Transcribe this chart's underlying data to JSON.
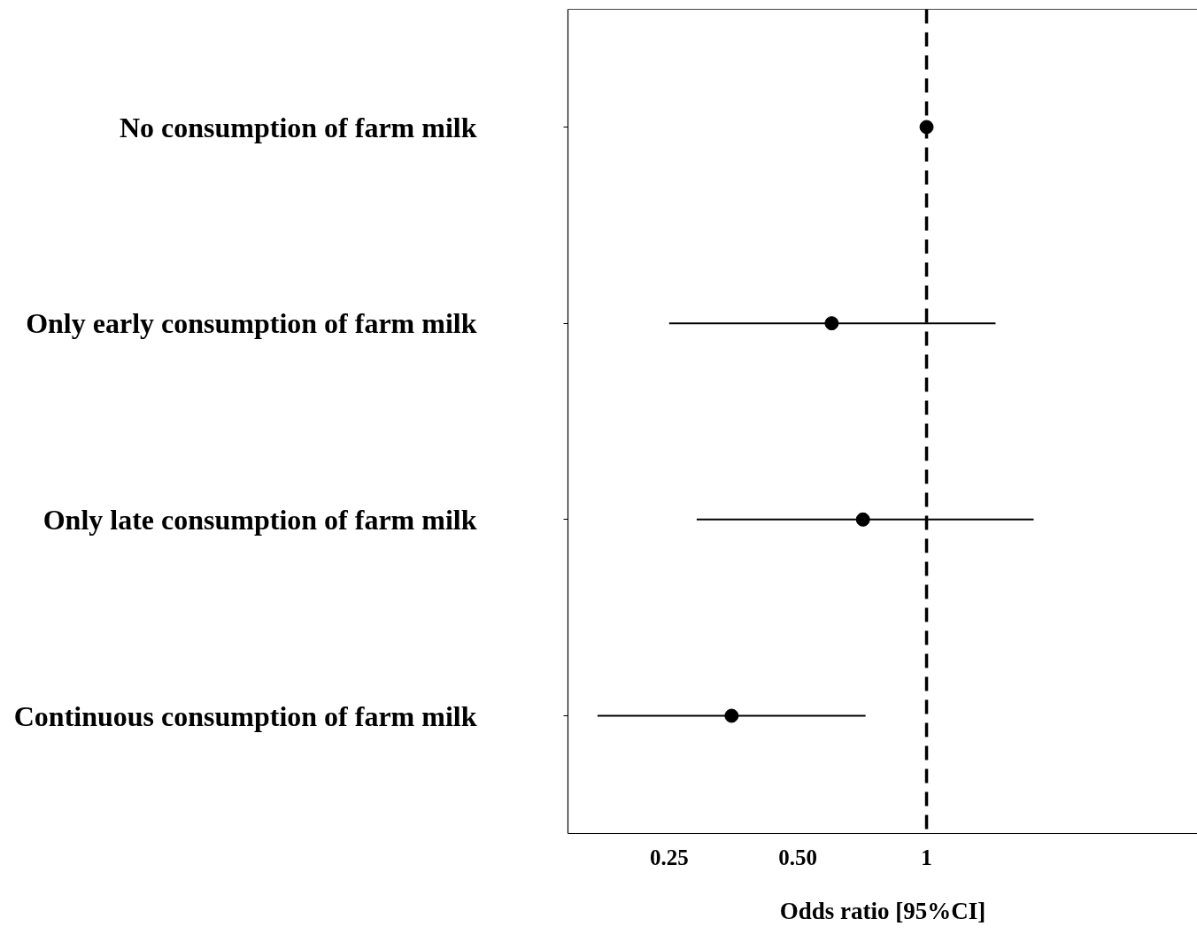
{
  "chart_data": {
    "type": "scatter",
    "orientation": "horizontal",
    "xlabel": "Odds ratio [95%CI]",
    "categories": [
      "No consumption of farm milk",
      "Only early consumption of farm milk",
      "Only late consumption of farm milk",
      "Continuous consumption of farm milk"
    ],
    "values": [
      1,
      0.6,
      0.71,
      0.35
    ],
    "errors": [
      null,
      [
        0.25,
        1.45
      ],
      [
        0.29,
        1.78
      ],
      [
        0.17,
        0.72
      ]
    ],
    "color": "#000000",
    "marker": "circle",
    "log": "x",
    "grid": false,
    "xlim": [
      0.145,
      4.3
    ],
    "xticks": [
      0.25,
      {
        "value": 0.5,
        "label": "0.50"
      },
      1
    ],
    "ref_lines": [
      {
        "axis": "x",
        "value": 1,
        "line_style": "dashed",
        "color": "#000000"
      }
    ]
  }
}
